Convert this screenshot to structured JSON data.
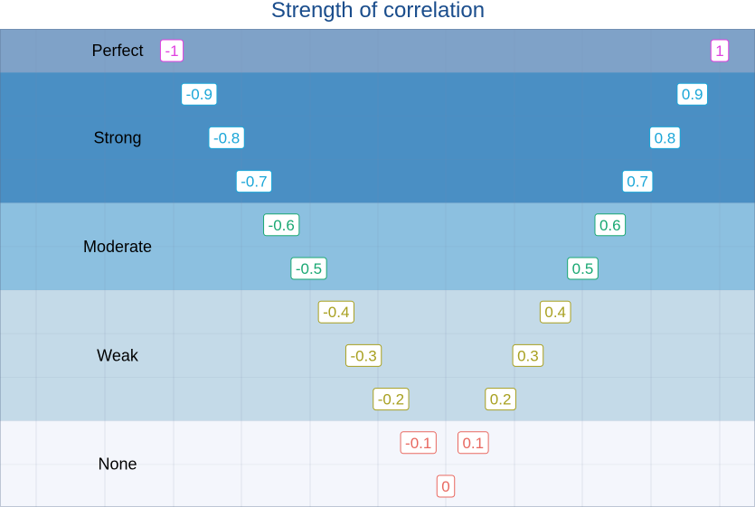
{
  "chart_data": {
    "type": "scatter",
    "title": "Strength of correlation",
    "xlabel": "",
    "ylabel": "",
    "grid": true,
    "bands": [
      {
        "label": "Perfect",
        "range": [
          -1,
          -1
        ],
        "color": "#7fa2c8",
        "label_color": "#e040e0"
      },
      {
        "label": "Strong",
        "range": [
          -0.9,
          -0.7
        ],
        "color": "#4a8fc4",
        "label_color": "#1aa6d8"
      },
      {
        "label": "Moderate",
        "range": [
          -0.6,
          -0.5
        ],
        "color": "#8cc0e0",
        "label_color": "#1aa873"
      },
      {
        "label": "Weak",
        "range": [
          -0.4,
          -0.2
        ],
        "color": "#c4dae8",
        "label_color": "#a8a020"
      },
      {
        "label": "None",
        "range": [
          -0.1,
          0
        ],
        "color": "#f4f6fc",
        "label_color": "#e86860"
      }
    ],
    "points": [
      {
        "label": "-1",
        "value": -1,
        "band": "Perfect"
      },
      {
        "label": "1",
        "value": 1,
        "band": "Perfect"
      },
      {
        "label": "-0.9",
        "value": -0.9,
        "band": "Strong"
      },
      {
        "label": "0.9",
        "value": 0.9,
        "band": "Strong"
      },
      {
        "label": "-0.8",
        "value": -0.8,
        "band": "Strong"
      },
      {
        "label": "0.8",
        "value": 0.8,
        "band": "Strong"
      },
      {
        "label": "-0.7",
        "value": -0.7,
        "band": "Strong"
      },
      {
        "label": "0.7",
        "value": 0.7,
        "band": "Strong"
      },
      {
        "label": "-0.6",
        "value": -0.6,
        "band": "Moderate"
      },
      {
        "label": "0.6",
        "value": 0.6,
        "band": "Moderate"
      },
      {
        "label": "-0.5",
        "value": -0.5,
        "band": "Moderate"
      },
      {
        "label": "0.5",
        "value": 0.5,
        "band": "Moderate"
      },
      {
        "label": "-0.4",
        "value": -0.4,
        "band": "Weak"
      },
      {
        "label": "0.4",
        "value": 0.4,
        "band": "Weak"
      },
      {
        "label": "-0.3",
        "value": -0.3,
        "band": "Weak"
      },
      {
        "label": "0.3",
        "value": 0.3,
        "band": "Weak"
      },
      {
        "label": "-0.2",
        "value": -0.2,
        "band": "Weak"
      },
      {
        "label": "0.2",
        "value": 0.2,
        "band": "Weak"
      },
      {
        "label": "-0.1",
        "value": -0.1,
        "band": "None"
      },
      {
        "label": "0.1",
        "value": 0.1,
        "band": "None"
      },
      {
        "label": "0",
        "value": 0,
        "band": "None"
      }
    ]
  }
}
